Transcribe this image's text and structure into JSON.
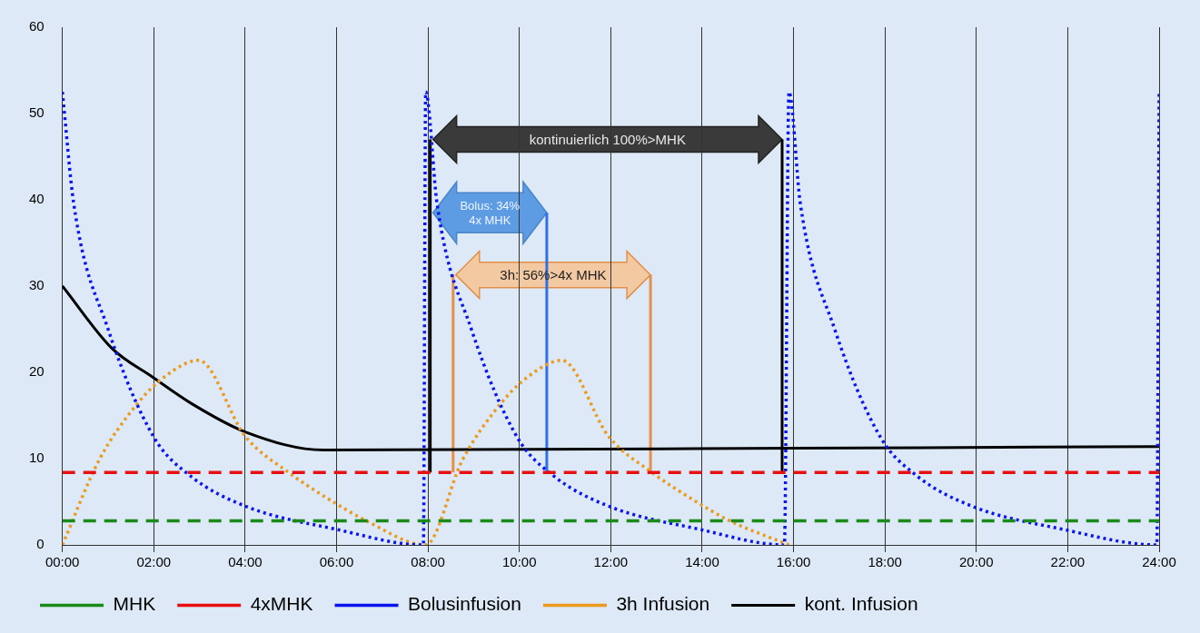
{
  "chart_data": {
    "type": "line",
    "xlim": [
      0,
      24
    ],
    "ylim": [
      0,
      60
    ],
    "xticks": [
      {
        "value": 0,
        "label": "00:00"
      },
      {
        "value": 2,
        "label": "02:00"
      },
      {
        "value": 4,
        "label": "04:00"
      },
      {
        "value": 6,
        "label": "06:00"
      },
      {
        "value": 8,
        "label": "08:00"
      },
      {
        "value": 10,
        "label": "10:00"
      },
      {
        "value": 12,
        "label": "12:00"
      },
      {
        "value": 14,
        "label": "14:00"
      },
      {
        "value": 16,
        "label": "16:00"
      },
      {
        "value": 18,
        "label": "18:00"
      },
      {
        "value": 20,
        "label": "20:00"
      },
      {
        "value": 22,
        "label": "22:00"
      },
      {
        "value": 24,
        "label": "24:00"
      }
    ],
    "yticks": [
      0,
      10,
      20,
      30,
      40,
      50,
      60
    ],
    "grid": "x",
    "legend": "bottom",
    "marker": "none",
    "series": [
      {
        "name": "MHK",
        "color": "#1a8a1a",
        "line_style": "dashed",
        "x": [
          0,
          24
        ],
        "values": [
          2.8,
          2.8
        ]
      },
      {
        "name": "4xMHK",
        "color": "#e81010",
        "line_style": "dashed",
        "x": [
          0,
          24
        ],
        "values": [
          8.4,
          8.4
        ]
      },
      {
        "name": "Bolusinfusion",
        "color": "#0a14f0",
        "line_style": "dotted",
        "x": [
          0,
          0.25,
          1,
          2,
          2.8,
          4,
          6,
          7.9,
          7.95,
          8.2,
          8.95,
          9.95,
          10.75,
          11.95,
          13.95,
          15.8,
          15.9,
          16.15,
          16.9,
          17.9,
          18.7,
          19.9,
          21.9,
          23.95,
          24
        ],
        "values": [
          52.5,
          39.5,
          25,
          12.5,
          8,
          4.5,
          1.8,
          0,
          52.5,
          39.5,
          25,
          12.5,
          8,
          4.5,
          1.8,
          0,
          52.5,
          39.5,
          25,
          12.5,
          8,
          4.5,
          1.8,
          0,
          52.5
        ]
      },
      {
        "name": "3h Infusion",
        "color": "#ec9a1e",
        "line_style": "dotted",
        "x": [
          0,
          0.8,
          1.63,
          2.24,
          2.98,
          4,
          4.95,
          5.83,
          6.65,
          7.95,
          8.75,
          9.58,
          10.19,
          10.93,
          11.95,
          12.9,
          13.78,
          14.6,
          15.9
        ],
        "values": [
          0,
          9.8,
          16.3,
          19.5,
          21.4,
          12.6,
          8.4,
          5.3,
          2.8,
          0,
          9.8,
          16.3,
          19.5,
          21.4,
          12.6,
          8.4,
          5.3,
          2.8,
          0
        ]
      },
      {
        "name": "kont. Infusion",
        "color": "#000000",
        "line_style": "solid",
        "x": [
          0,
          1.08,
          1.96,
          2.85,
          4,
          5.72,
          16,
          24
        ],
        "values": [
          30,
          22.8,
          19.5,
          16.3,
          13.1,
          11,
          11.2,
          11.4
        ]
      },
      {
        "color": "#000000",
        "line_style": "solid",
        "x": [
          8.05,
          8.05
        ],
        "values": [
          8.4,
          47
        ]
      },
      {
        "color": "#000000",
        "line_style": "solid",
        "x": [
          15.75,
          15.75
        ],
        "values": [
          8.4,
          47
        ]
      },
      {
        "color": "#2f6fe8",
        "line_style": "solid",
        "x": [
          10.6,
          10.6
        ],
        "values": [
          8.4,
          38.5
        ]
      },
      {
        "color": "#e3904a",
        "line_style": "solid",
        "x": [
          8.55,
          8.55
        ],
        "values": [
          8.4,
          31.3
        ]
      },
      {
        "color": "#e3904a",
        "line_style": "solid",
        "x": [
          12.87,
          12.87
        ],
        "values": [
          8.4,
          31.3
        ]
      }
    ],
    "annotations": [
      "kontinuierlich 100%>MHK",
      "Bolus: 34%\n4x MHK",
      "3h: 56%>4x MHK"
    ]
  }
}
